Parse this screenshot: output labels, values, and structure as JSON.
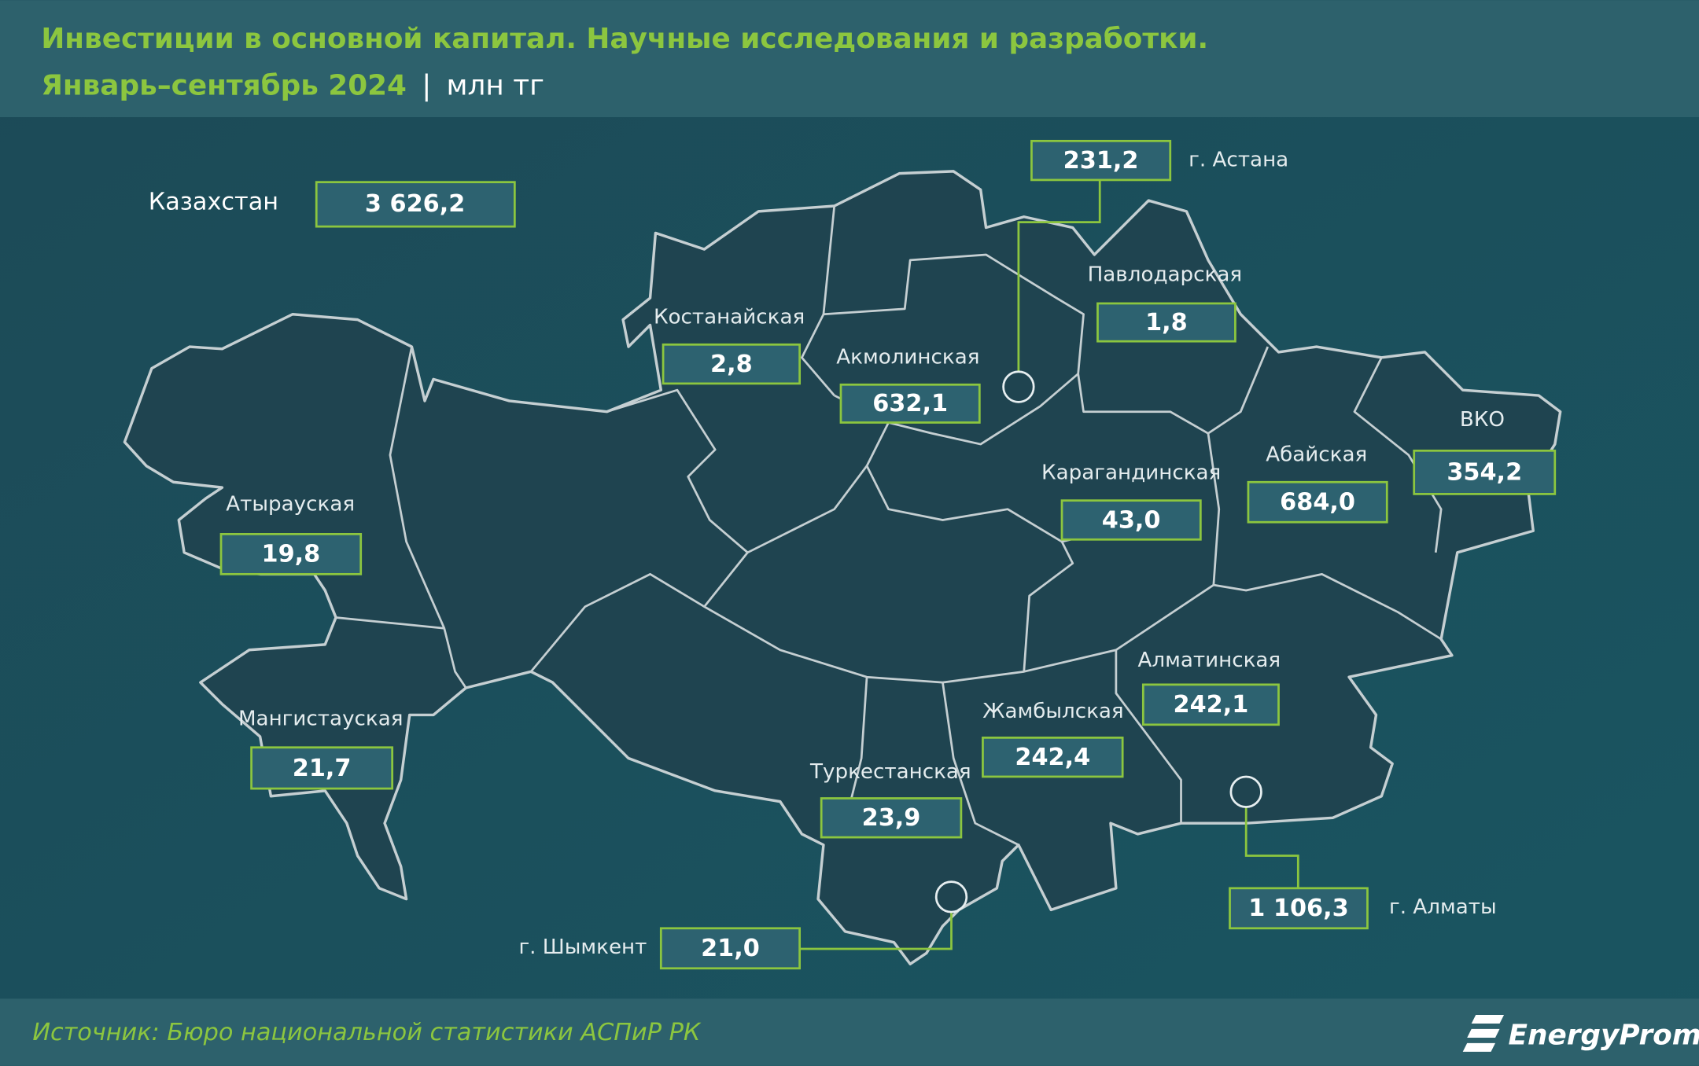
{
  "header": {
    "title": "Инвестиции в основной капитал. Научные исследования и разработки.",
    "period": "Январь–сентябрь 2024",
    "unit": "млн тг"
  },
  "total": {
    "name": "Казахстан",
    "value": "3 626,2"
  },
  "regions": [
    {
      "name": "г. Астана",
      "value": "231,2"
    },
    {
      "name": "Павлодарская",
      "value": "1,8"
    },
    {
      "name": "Костанайская",
      "value": "2,8"
    },
    {
      "name": "Акмолинская",
      "value": "632,1"
    },
    {
      "name": "ВКО",
      "value": "354,2"
    },
    {
      "name": "Абайская",
      "value": "684,0"
    },
    {
      "name": "Карагандинская",
      "value": "43,0"
    },
    {
      "name": "Атырауская",
      "value": "19,8"
    },
    {
      "name": "Алматинская",
      "value": "242,1"
    },
    {
      "name": "Жамбылская",
      "value": "242,4"
    },
    {
      "name": "Мангистауская",
      "value": "21,7"
    },
    {
      "name": "Туркестанская",
      "value": "23,9"
    },
    {
      "name": "г. Шымкент",
      "value": "21,0"
    },
    {
      "name": "г. Алматы",
      "value": "1 106,3"
    }
  ],
  "footer": {
    "source": "Источник: Бюро национальной статистики АСПиР РК",
    "logo": "EnergyProm"
  }
}
